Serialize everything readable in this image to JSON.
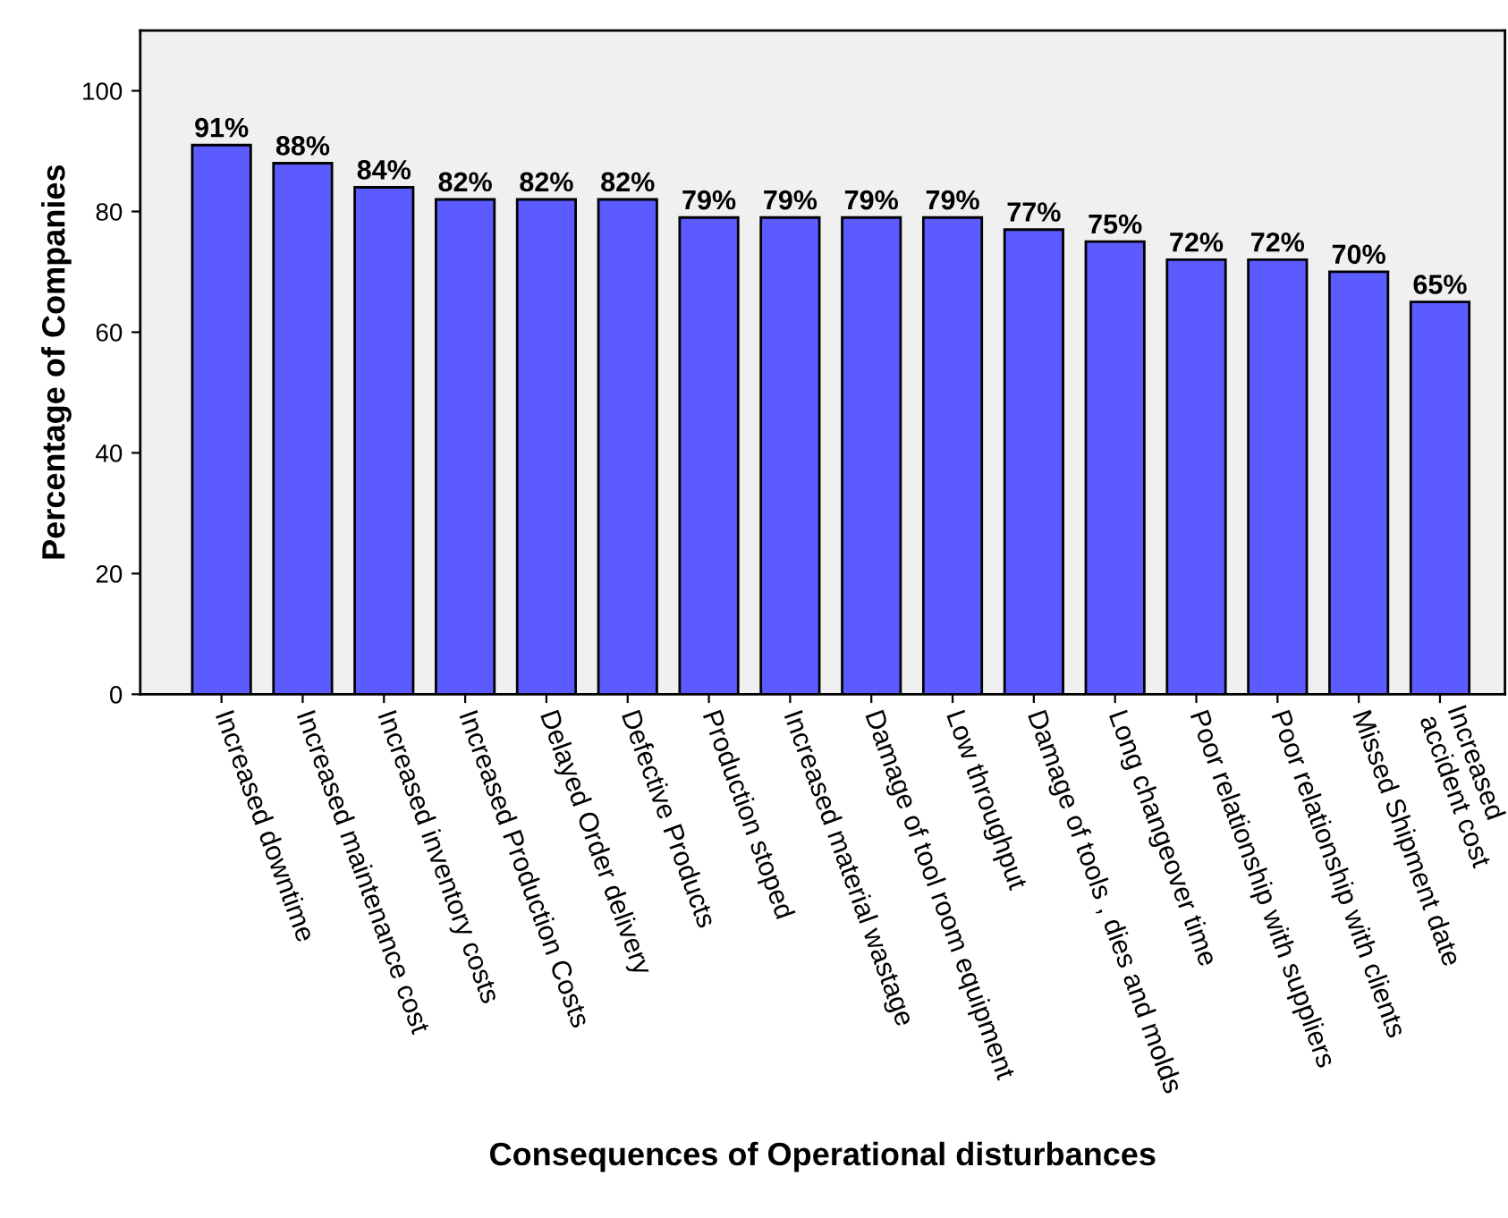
{
  "chart_data": {
    "type": "bar",
    "xlabel": "Consequences of Operational disturbances",
    "ylabel": "Percentage of Companies",
    "categories": [
      "Increased downtime",
      "Increased maintenance cost",
      "Increased inventory costs",
      "Increased Production Costs",
      "Delayed Order delivery",
      "Defective Products",
      "Production stoped",
      "Increased material wastage",
      "Damage of tool room equipment",
      "Low throughput",
      "Damage of tools , dies and molds",
      "Long changeover time",
      "Poor relationship with suppliers",
      "Poor relationship with clients",
      "Missed Shipment date",
      "Increased\naccident cost"
    ],
    "values": [
      91,
      88,
      84,
      82,
      82,
      82,
      79,
      79,
      79,
      79,
      77,
      75,
      72,
      72,
      70,
      65
    ],
    "value_labels": [
      "91%",
      "88%",
      "84%",
      "82%",
      "82%",
      "82%",
      "79%",
      "79%",
      "79%",
      "79%",
      "77%",
      "75%",
      "72%",
      "72%",
      "70%",
      "65%"
    ],
    "color": "#5b5bff",
    "ylim": [
      0,
      110
    ],
    "yticks": [
      0,
      20,
      40,
      60,
      80,
      100
    ],
    "grid": false,
    "legend": false
  }
}
